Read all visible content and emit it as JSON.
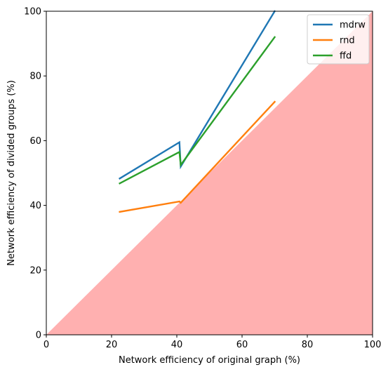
{
  "chart_data": {
    "type": "line",
    "title": "",
    "xlabel": "Network efficiency of original graph (%)",
    "ylabel": "Network efficiency of divided groups (%)",
    "xlim": [
      0,
      100
    ],
    "ylim": [
      0,
      100
    ],
    "xticks": [
      "0",
      "20",
      "40",
      "60",
      "80",
      "100"
    ],
    "yticks": [
      "0",
      "20",
      "40",
      "60",
      "80",
      "100"
    ],
    "grid": false,
    "legend_position": "top-right",
    "shaded_region": {
      "description": "region below y = x",
      "color": "#ff9a9a",
      "points": [
        [
          0,
          0
        ],
        [
          100,
          100
        ],
        [
          100,
          0
        ]
      ]
    },
    "series": [
      {
        "name": "mdrw",
        "color": "#1f77b4",
        "points": [
          [
            22.5,
            48.3
          ],
          [
            40.8,
            59.5
          ],
          [
            41.2,
            52.0
          ],
          [
            70.0,
            100.0
          ]
        ]
      },
      {
        "name": "rnd",
        "color": "#ff7f0e",
        "points": [
          [
            22.5,
            38.0
          ],
          [
            40.8,
            41.2
          ],
          [
            41.2,
            40.8
          ],
          [
            70.0,
            72.0
          ]
        ]
      },
      {
        "name": "ffd",
        "color": "#2ca02c",
        "points": [
          [
            22.5,
            46.8
          ],
          [
            40.8,
            56.5
          ],
          [
            41.2,
            52.5
          ],
          [
            70.0,
            92.0
          ]
        ]
      }
    ]
  }
}
